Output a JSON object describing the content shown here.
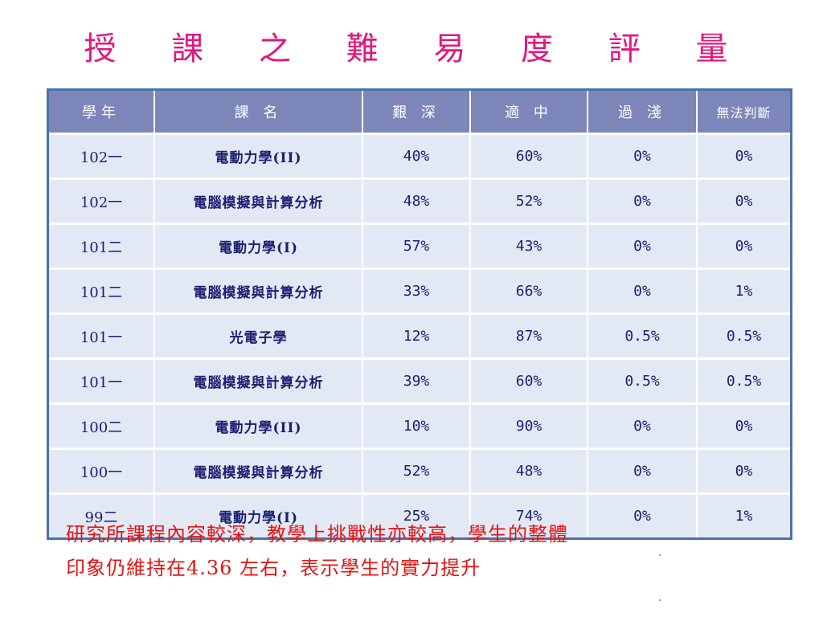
{
  "title": "授 課 之 難 易 度 評 量",
  "table": {
    "headers": [
      "學年",
      "課 名",
      "艱 深",
      "適 中",
      "過 淺",
      "無法判斷"
    ],
    "rows": [
      [
        "102一",
        "電動力學(II)",
        "40%",
        "60%",
        "0%",
        "0%"
      ],
      [
        "102一",
        "電腦模擬與計算分析",
        "48%",
        "52%",
        "0%",
        "0%"
      ],
      [
        "101二",
        "電動力學(I)",
        "57%",
        "43%",
        "0%",
        "0%"
      ],
      [
        "101二",
        "電腦模擬與計算分析",
        "33%",
        "66%",
        "0%",
        "1%"
      ],
      [
        "101一",
        "光電子學",
        "12%",
        "87%",
        "0.5%",
        "0.5%"
      ],
      [
        "101一",
        "電腦模擬與計算分析",
        "39%",
        "60%",
        "0.5%",
        "0.5%"
      ],
      [
        "100二",
        "電動力學(II)",
        "10%",
        "90%",
        "0%",
        "0%"
      ],
      [
        "100一",
        "電腦模擬與計算分析",
        "52%",
        "48%",
        "0%",
        "0%"
      ],
      [
        "99二",
        "電動力學(I)",
        "25%",
        "74%",
        "0%",
        "1%"
      ]
    ]
  },
  "note": {
    "line1": "研究所課程內容較深，教學上挑戰性亦較高，學生的整體",
    "line2": "印象仍維持在4.36 左右，表示學生的實力提升"
  },
  "colors": {
    "title": "#e0187f",
    "header_bg": "#7d86b8",
    "cell_bg": "#e3e9f4",
    "cell_text": "#1a1f73",
    "note": "#e31414"
  }
}
